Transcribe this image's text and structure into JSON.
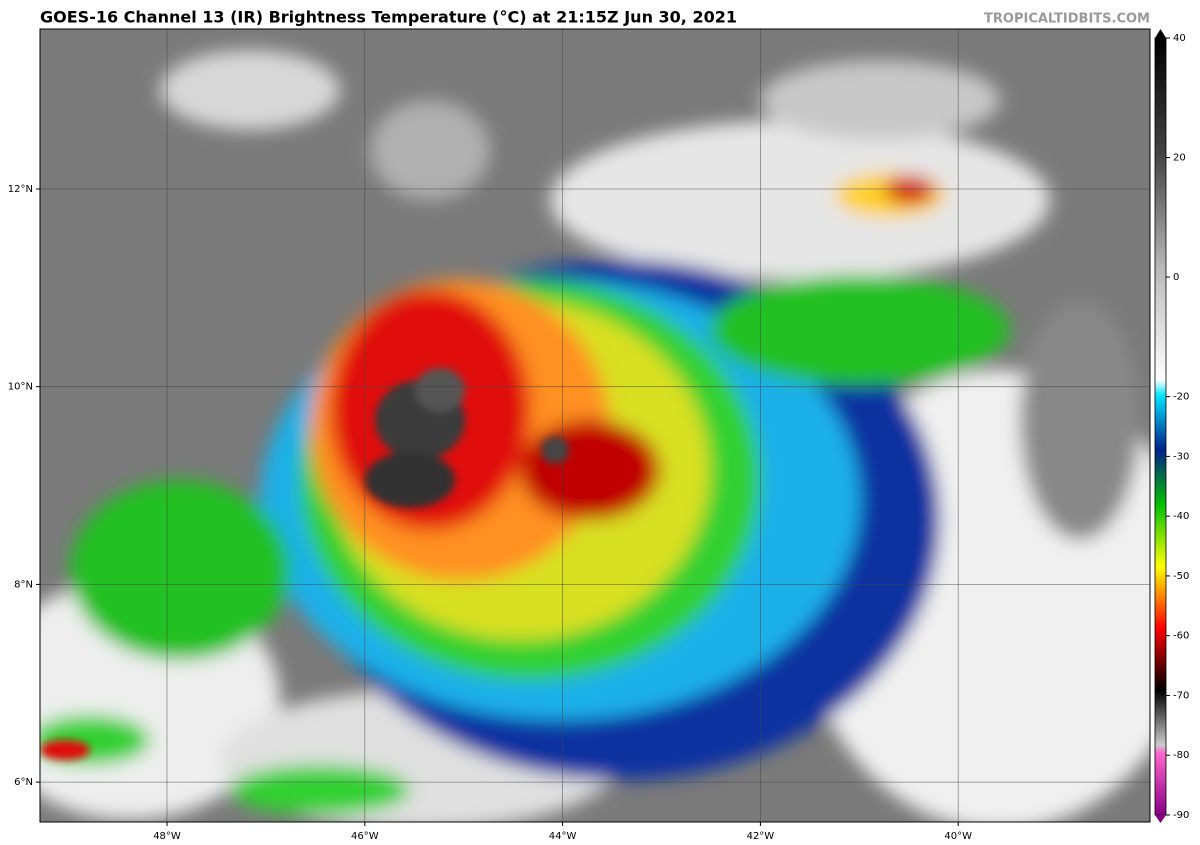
{
  "header": {
    "title": "GOES-16 Channel 13 (IR) Brightness Temperature (°C) at 21:15Z Jun 30, 2021",
    "credit": "TROPICALTIDBITS.COM"
  },
  "map": {
    "lon_labels": [
      "48°W",
      "46°W",
      "44°W",
      "42°W",
      "40°W"
    ],
    "lat_labels": [
      "12°N",
      "10°N",
      "8°N",
      "6°N"
    ]
  },
  "colorbar": {
    "ticks": [
      40,
      20,
      0,
      -20,
      -30,
      -40,
      -50,
      -60,
      -70,
      -80,
      -90
    ]
  }
}
